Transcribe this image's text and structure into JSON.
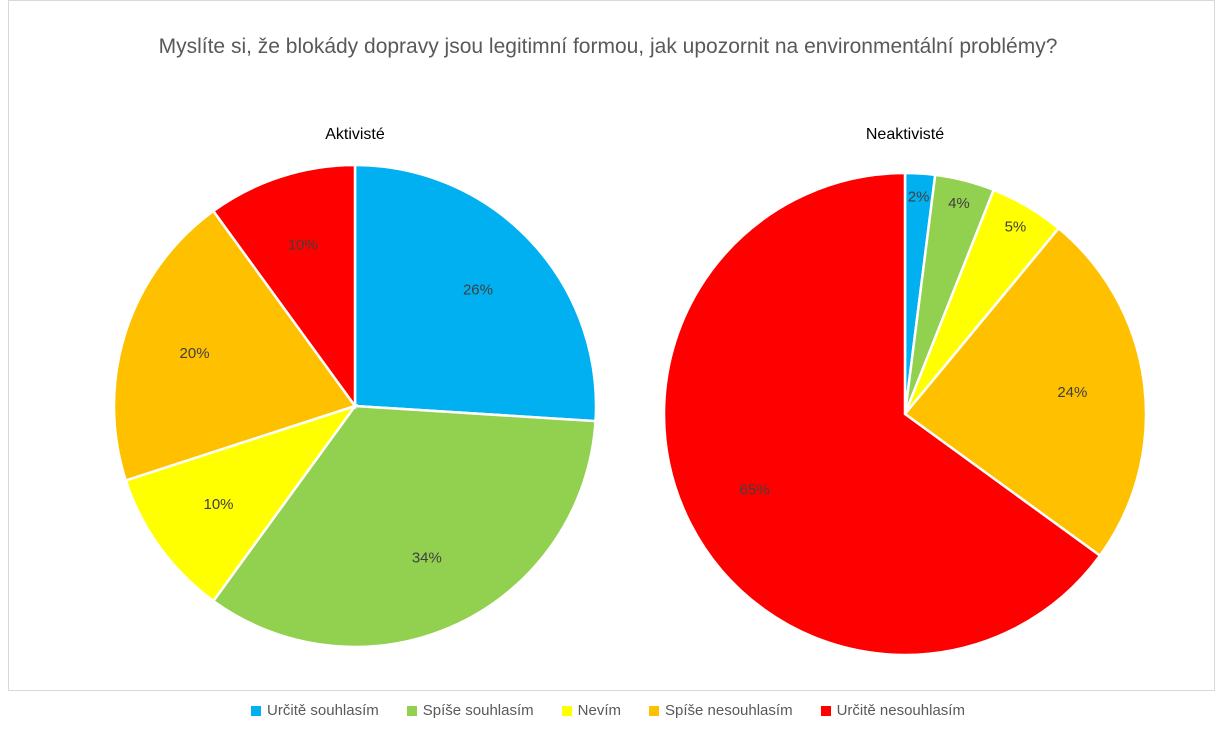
{
  "title": "Myslíte si, že blokády dopravy jsou legitimní formou, jak upozornit na environmentální problémy?",
  "chart_data": [
    {
      "type": "pie",
      "title": "Aktivisté",
      "categories": [
        "Určitě souhlasím",
        "Spíše souhlasím",
        "Nevím",
        "Spíše nesouhlasím",
        "Určitě nesouhlasím"
      ],
      "values": [
        26,
        34,
        10,
        20,
        10
      ],
      "value_labels": [
        "26%",
        "34%",
        "10%",
        "20%",
        "10%"
      ],
      "colors": [
        "#00b0f0",
        "#92d050",
        "#ffff00",
        "#ffc000",
        "#ff0000"
      ]
    },
    {
      "type": "pie",
      "title": "Neaktivisté",
      "categories": [
        "Určitě souhlasím",
        "Spíše souhlasím",
        "Nevím",
        "Spíše nesouhlasím",
        "Určitě nesouhlasím"
      ],
      "values": [
        2,
        4,
        5,
        24,
        65
      ],
      "value_labels": [
        "2%",
        "4%",
        "5%",
        "24%",
        "65%"
      ],
      "colors": [
        "#00b0f0",
        "#92d050",
        "#ffff00",
        "#ffc000",
        "#ff0000"
      ]
    }
  ]
}
